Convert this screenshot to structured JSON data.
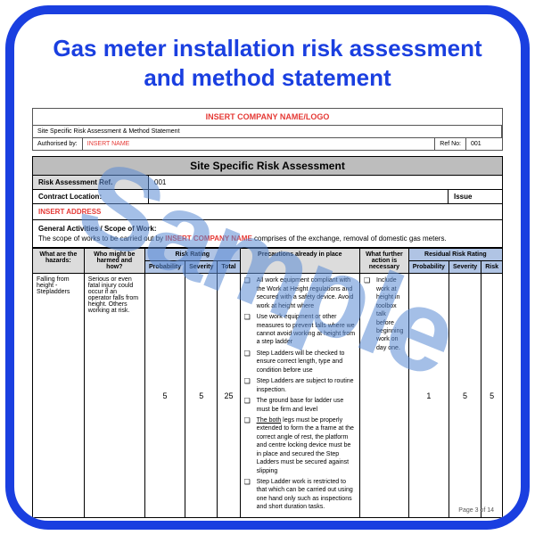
{
  "title": "Gas meter installation risk assessment and method statement",
  "watermark": "Sample",
  "company_placeholder": "INSERT COMPANY NAME/LOGO",
  "subhead": {
    "site_specific": "Site Specific Risk Assessment & Method Statement",
    "auth_label": "Authorised by:",
    "auth_name": "INSERT NAME",
    "ref_label": "Ref No:",
    "ref_no": "001"
  },
  "section_title": "Site Specific Risk Assessment",
  "ra_ref_label": "Risk Assessment Ref.",
  "ra_ref_value": "001",
  "contract_label": "Contract Location:",
  "issue_label": "Issue",
  "address_placeholder": "INSERT ADDRESS",
  "scope": {
    "heading": "General Activities / Scope of Work:",
    "line_pre": "The scope of works to be carried out by ",
    "insert": "INSERT COMPANY NAME",
    "line_mid": " comprises of the",
    "line_end": " exchange, removal of domestic gas meters."
  },
  "headers": {
    "hazards": "What are the hazards:",
    "who": "Who might be harmed and how?",
    "risk_rating": "Risk Rating",
    "prob": "Probability",
    "sev": "Severity",
    "tot": "Total",
    "precautions": "Precautions already in place",
    "further": "What further action is necessary",
    "residual": "Residual Risk Rating",
    "risk": "Risk"
  },
  "row1": {
    "hazard": "Falling from height - Stepladders",
    "who": "Serious or even fatal injury could occur if an operator falls from height. Others working at risk.",
    "prob": "5",
    "sev": "5",
    "tot": "25",
    "precautions": [
      "All work equipment compliant with the Work at Height regulations and secured with a safety device. Avoid work at height where",
      "Use work equipment or other measures to prevent falls where we cannot avoid working at height from a step ladder",
      "Step Ladders will be checked to ensure correct length, type and condition before use",
      "Step Ladders are subject to routine inspection.",
      "The ground base for ladder use must be firm and level",
      "The both legs must be properly extended to form the a frame at the correct angle of rest, the platform and centre locking device must be in place and secured the Step Ladders must be secured against slipping",
      "Step Ladder work is restricted to that which can be carried out using one hand only such as inspections and short duration tasks."
    ],
    "further": "Include work at height in toolbox talk before beginning work on day one.",
    "r_prob": "1",
    "r_sev": "5",
    "r_risk": "5"
  },
  "page_num": "Page 3 of 14",
  "colors": {
    "frame": "#1a3fe0",
    "header_gray": "#bdbdbd",
    "cell_gray": "#dcdcdc",
    "rr_blue": "#b0c4e4",
    "insert_red": "#e53935",
    "watermark": "#5b8bd4"
  }
}
